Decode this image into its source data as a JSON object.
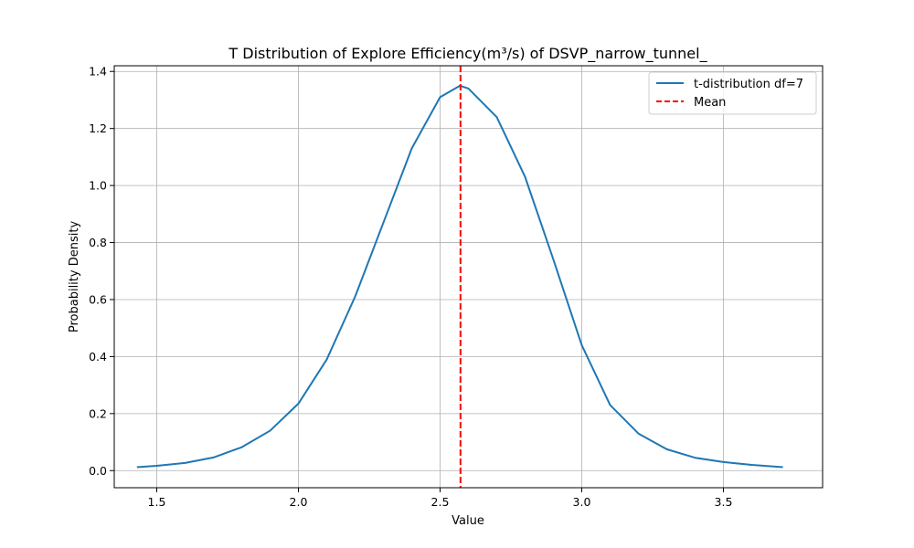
{
  "chart_data": {
    "type": "line",
    "title": "T Distribution of Explore Efficiency(m³/s) of DSVP_narrow_tunnel_",
    "xlabel": "Value",
    "ylabel": "Probability Density",
    "xlim": [
      1.35,
      3.85
    ],
    "ylim": [
      -0.06,
      1.42
    ],
    "xticks": [
      1.5,
      2.0,
      2.5,
      3.0,
      3.5
    ],
    "yticks": [
      0.0,
      0.2,
      0.4,
      0.6,
      0.8,
      1.0,
      1.2,
      1.4
    ],
    "xtick_labels": [
      "1.5",
      "2.0",
      "2.5",
      "3.0",
      "3.5"
    ],
    "ytick_labels": [
      "0.0",
      "0.2",
      "0.4",
      "0.6",
      "0.8",
      "1.0",
      "1.2",
      "1.4"
    ],
    "grid": true,
    "legend_position": "top-right",
    "series": [
      {
        "name": "t-distribution df=7",
        "color": "#1f77b4",
        "style": "solid",
        "x": [
          1.43,
          1.5,
          1.6,
          1.7,
          1.8,
          1.9,
          2.0,
          2.1,
          2.2,
          2.3,
          2.4,
          2.5,
          2.57,
          2.6,
          2.7,
          2.8,
          2.9,
          3.0,
          3.1,
          3.2,
          3.3,
          3.4,
          3.5,
          3.6,
          3.71
        ],
        "y": [
          0.012,
          0.017,
          0.027,
          0.046,
          0.082,
          0.14,
          0.235,
          0.39,
          0.61,
          0.87,
          1.13,
          1.31,
          1.35,
          1.34,
          1.24,
          1.03,
          0.74,
          0.44,
          0.23,
          0.13,
          0.075,
          0.045,
          0.03,
          0.02,
          0.012
        ]
      },
      {
        "name": "Mean",
        "color": "#ff0000",
        "style": "dashed",
        "vline_x": 2.572
      }
    ]
  }
}
